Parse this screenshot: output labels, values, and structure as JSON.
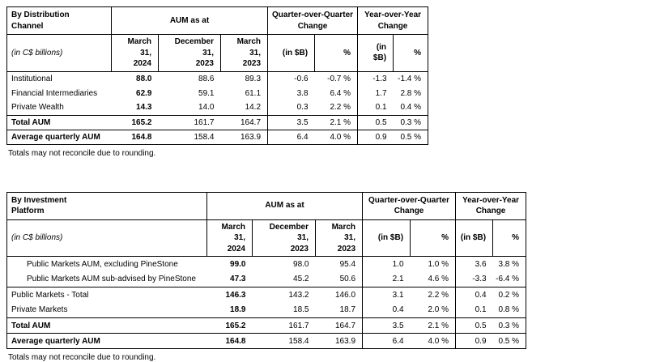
{
  "page": {
    "background_color": "#ffffff",
    "text_color": "#000000",
    "border_color": "#000000"
  },
  "footnote": "Totals may not reconcile due to rounding.",
  "tables": [
    {
      "title_lines": [
        "By Distribution",
        "Channel"
      ],
      "unit_label": "(in C$ billions)",
      "group_headers": {
        "aum": "AUM as at",
        "qoq": [
          "Quarter-over-Quarter",
          "Change"
        ],
        "yoy": [
          "Year-over-Year",
          "Change"
        ]
      },
      "date_headers": [
        [
          "March 31,",
          "2024"
        ],
        [
          "December 31,",
          "2023"
        ],
        [
          "March 31,",
          "2023"
        ]
      ],
      "change_headers": [
        "(in $B)",
        "%",
        "(in $B)",
        "%"
      ],
      "rows": [
        {
          "label": "Institutional",
          "indent": false,
          "bold_label": false,
          "top_border": false,
          "values": [
            "88.0",
            "88.6",
            "89.3",
            "-0.6",
            "-0.7 %",
            "-1.3",
            "-1.4 %"
          ]
        },
        {
          "label": "Financial Intermediaries",
          "indent": false,
          "bold_label": false,
          "top_border": false,
          "values": [
            "62.9",
            "59.1",
            "61.1",
            "3.8",
            "6.4 %",
            "1.7",
            "2.8 %"
          ]
        },
        {
          "label": "Private Wealth",
          "indent": false,
          "bold_label": false,
          "top_border": false,
          "values": [
            "14.3",
            "14.0",
            "14.2",
            "0.3",
            "2.2 %",
            "0.1",
            "0.4 %"
          ]
        },
        {
          "label": "Total AUM",
          "indent": false,
          "bold_label": true,
          "top_border": true,
          "values": [
            "165.2",
            "161.7",
            "164.7",
            "3.5",
            "2.1 %",
            "0.5",
            "0.3 %"
          ]
        },
        {
          "label": "Average quarterly AUM",
          "indent": false,
          "bold_label": true,
          "top_border": true,
          "values": [
            "164.8",
            "158.4",
            "163.9",
            "6.4",
            "4.0 %",
            "0.9",
            "0.5 %"
          ]
        }
      ],
      "footnote": "Totals may not reconcile due to rounding."
    },
    {
      "title_lines": [
        "By Investment",
        "Platform"
      ],
      "unit_label": "(in C$ billions)",
      "group_headers": {
        "aum": "AUM as at",
        "qoq": [
          "Quarter-over-Quarter",
          "Change"
        ],
        "yoy": [
          "Year-over-Year",
          "Change"
        ]
      },
      "date_headers": [
        [
          "March 31,",
          "2024"
        ],
        [
          "December 31,",
          "2023"
        ],
        [
          "March 31,",
          "2023"
        ]
      ],
      "change_headers": [
        "(in $B)",
        "%",
        "(in $B)",
        "%"
      ],
      "rows": [
        {
          "label": "Public Markets AUM, excluding PineStone",
          "indent": true,
          "bold_label": false,
          "top_border": false,
          "values": [
            "99.0",
            "98.0",
            "95.4",
            "1.0",
            "1.0 %",
            "3.6",
            "3.8 %"
          ]
        },
        {
          "label": "Public Markets AUM sub-advised by PineStone",
          "indent": true,
          "bold_label": false,
          "top_border": false,
          "values": [
            "47.3",
            "45.2",
            "50.6",
            "2.1",
            "4.6 %",
            "-3.3",
            "-6.4 %"
          ]
        },
        {
          "label": "Public Markets - Total",
          "indent": false,
          "bold_label": false,
          "top_border": true,
          "values": [
            "146.3",
            "143.2",
            "146.0",
            "3.1",
            "2.2 %",
            "0.4",
            "0.2 %"
          ]
        },
        {
          "label": "Private Markets",
          "indent": false,
          "bold_label": false,
          "top_border": false,
          "values": [
            "18.9",
            "18.5",
            "18.7",
            "0.4",
            "2.0 %",
            "0.1",
            "0.8 %"
          ]
        },
        {
          "label": "Total AUM",
          "indent": false,
          "bold_label": true,
          "top_border": true,
          "values": [
            "165.2",
            "161.7",
            "164.7",
            "3.5",
            "2.1 %",
            "0.5",
            "0.3 %"
          ]
        },
        {
          "label": "Average quarterly AUM",
          "indent": false,
          "bold_label": true,
          "top_border": true,
          "values": [
            "164.8",
            "158.4",
            "163.9",
            "6.4",
            "4.0 %",
            "0.9",
            "0.5 %"
          ]
        }
      ],
      "footnote": "Totals may not reconcile due to rounding."
    }
  ]
}
